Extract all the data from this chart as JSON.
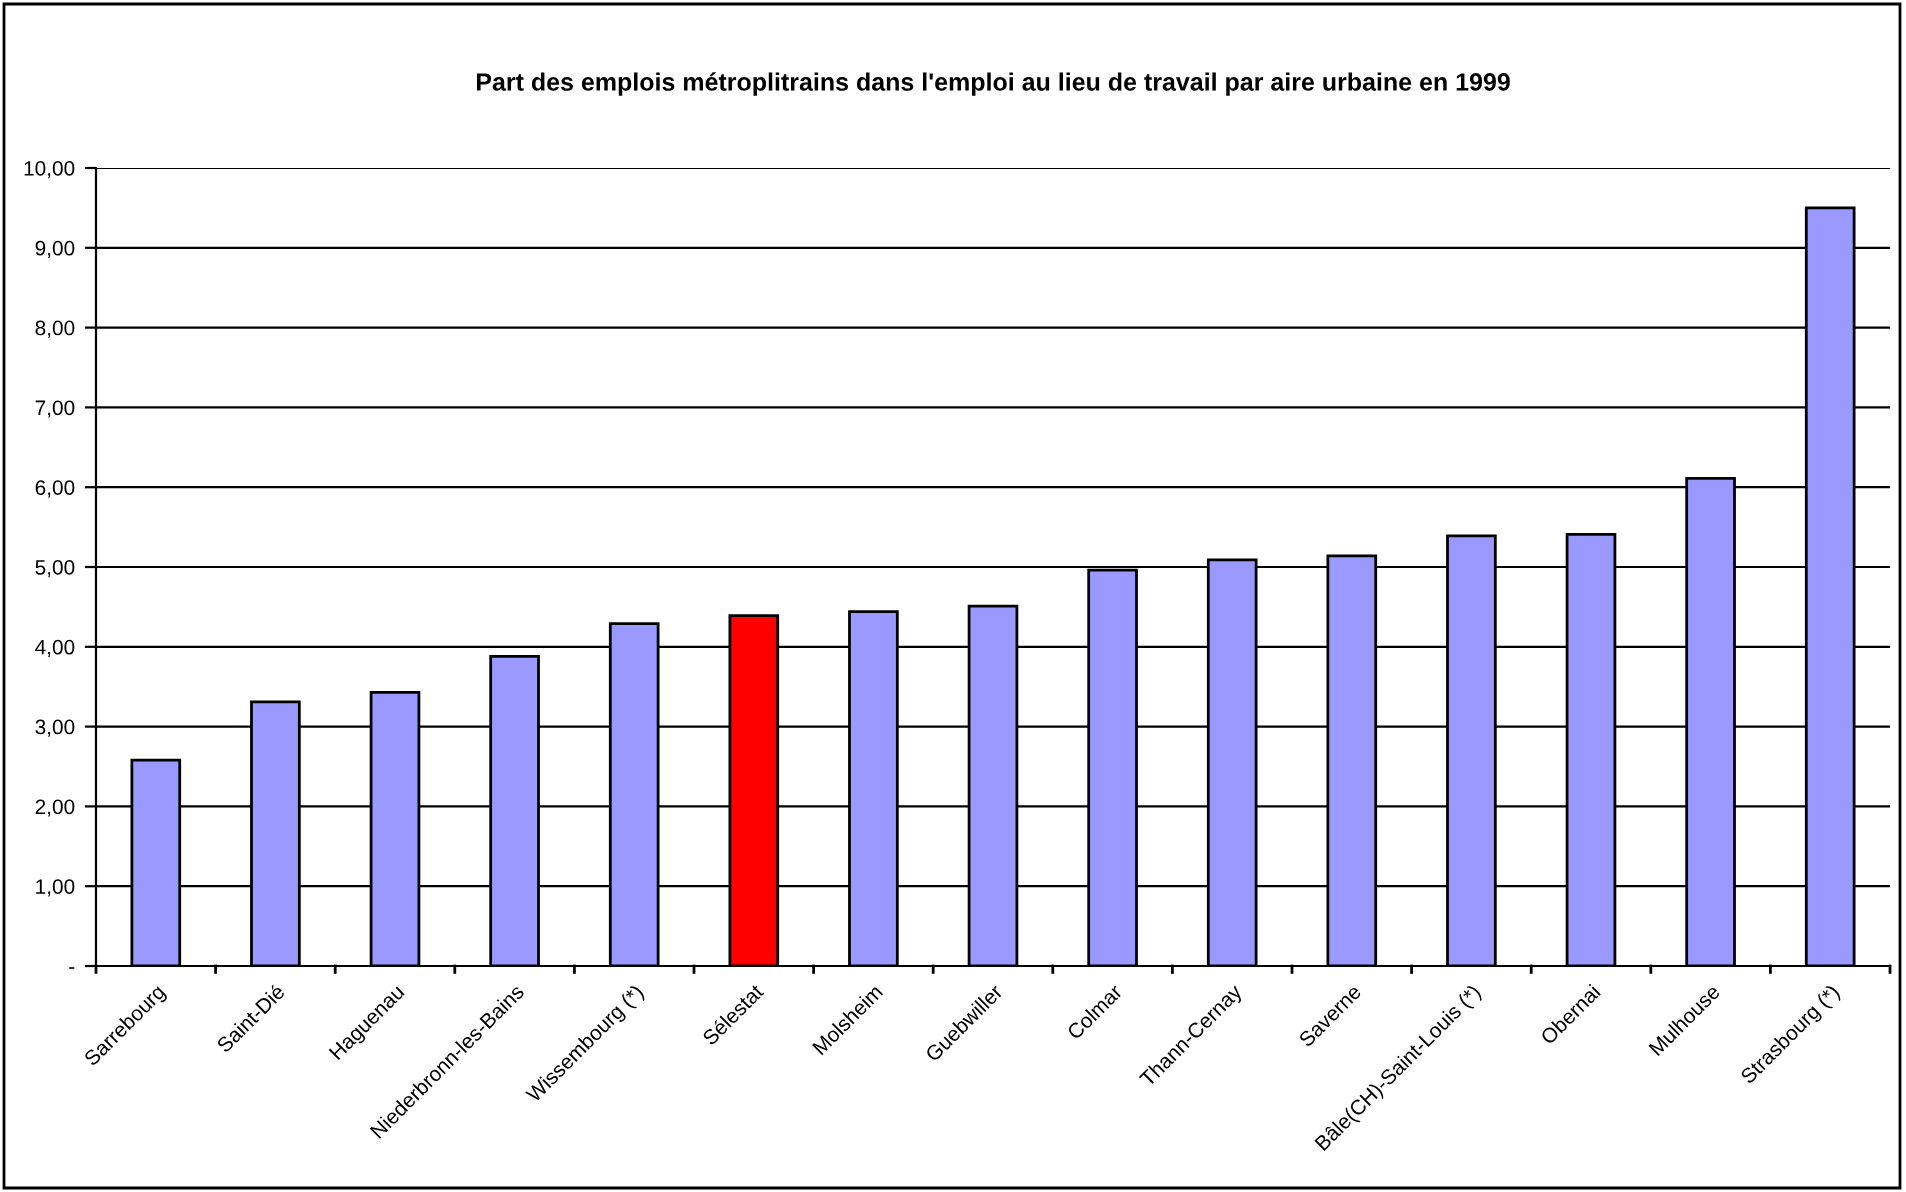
{
  "chart_data": {
    "type": "bar",
    "title": "Part des emplois métroplitrains dans l'emploi au lieu de travail par aire urbaine en 1999",
    "categories": [
      "Sarrebourg",
      "Saint-Dié",
      "Haguenau",
      "Niederbronn-les-Bains",
      "Wissembourg (*)",
      "Sélestat",
      "Molsheim",
      "Guebwiller",
      "Colmar",
      "Thann-Cernay",
      "Saverne",
      "Bâle(CH)-Saint-Louis (*)",
      "Obernai",
      "Mulhouse",
      "Strasbourg (*)"
    ],
    "values": [
      2.58,
      3.31,
      3.43,
      3.88,
      4.29,
      4.39,
      4.44,
      4.51,
      4.96,
      5.09,
      5.14,
      5.39,
      5.41,
      6.11,
      9.5
    ],
    "colors": [
      "#9999ff",
      "#9999ff",
      "#9999ff",
      "#9999ff",
      "#9999ff",
      "#ff0000",
      "#9999ff",
      "#9999ff",
      "#9999ff",
      "#9999ff",
      "#9999ff",
      "#9999ff",
      "#9999ff",
      "#9999ff",
      "#9999ff"
    ],
    "ylim": [
      0,
      10
    ],
    "yticks": [
      {
        "value": 0,
        "label": "-"
      },
      {
        "value": 1,
        "label": "1,00"
      },
      {
        "value": 2,
        "label": "2,00"
      },
      {
        "value": 3,
        "label": "3,00"
      },
      {
        "value": 4,
        "label": "4,00"
      },
      {
        "value": 5,
        "label": "5,00"
      },
      {
        "value": 6,
        "label": "6,00"
      },
      {
        "value": 7,
        "label": "7,00"
      },
      {
        "value": 8,
        "label": "8,00"
      },
      {
        "value": 9,
        "label": "9,00"
      },
      {
        "value": 10,
        "label": "10,00"
      }
    ],
    "grid": "y",
    "legend": false
  }
}
